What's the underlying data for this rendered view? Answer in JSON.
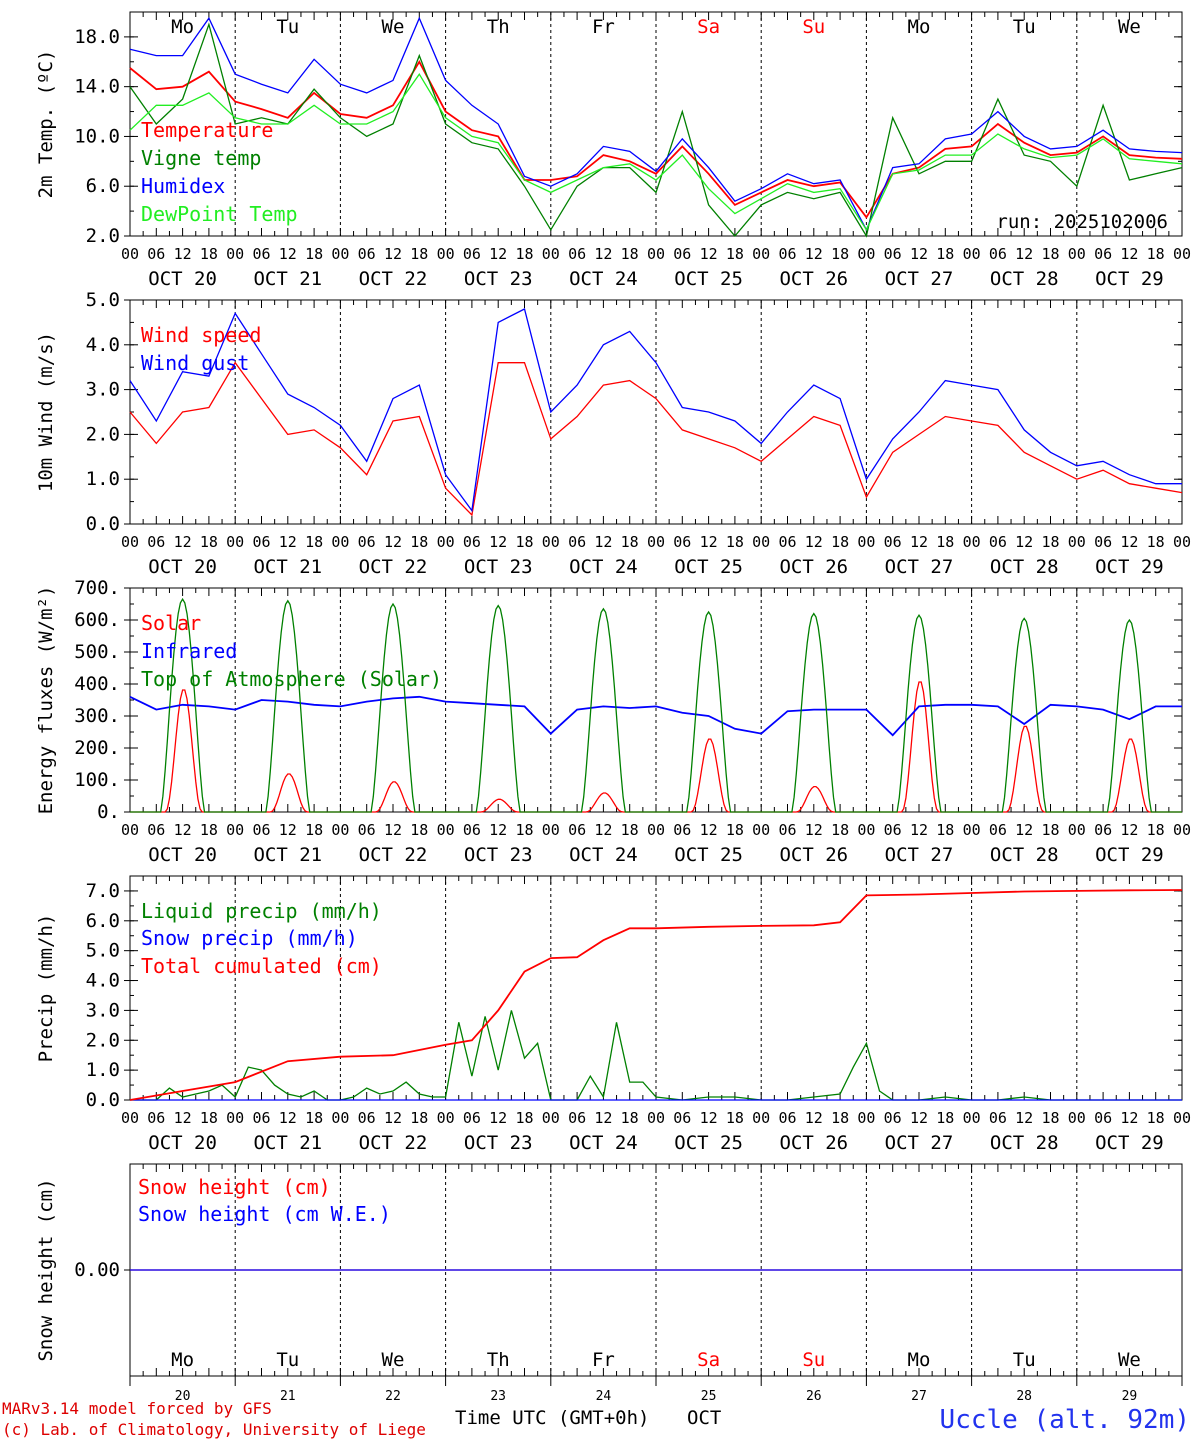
{
  "meta": {
    "station": "Uccle (alt. 92m)",
    "run_label": "run: 2025102006",
    "credit_line1": "MARv3.14 model forced by GFS",
    "credit_line2": "(c) Lab. of Climatology, University of Liege",
    "time_axis_label": "Time UTC (GMT+0h)",
    "month_label": "OCT"
  },
  "colors": {
    "red": "#ff0000",
    "dark_green": "#008000",
    "blue": "#0000ff",
    "light_green": "#22ee22",
    "weekend": "#ff0000",
    "axis": "#000000",
    "station": "#2233ee",
    "credit": "#dd0000"
  },
  "days": {
    "names": [
      "Mo",
      "Tu",
      "We",
      "Th",
      "Fr",
      "Sa",
      "Su",
      "Mo",
      "Tu",
      "We"
    ],
    "weekend": [
      false,
      false,
      false,
      false,
      false,
      true,
      true,
      false,
      false,
      false
    ],
    "dates": [
      "OCT 20",
      "OCT 21",
      "OCT 22",
      "OCT 23",
      "OCT 24",
      "OCT 25",
      "OCT 26",
      "OCT 27",
      "OCT 28",
      "OCT 29"
    ],
    "numbers": [
      "20",
      "21",
      "22",
      "23",
      "24",
      "25",
      "26",
      "27",
      "28",
      "29"
    ],
    "hour_ticks": [
      "00",
      "06",
      "12",
      "18"
    ]
  },
  "chart_data": [
    {
      "id": "temperature",
      "type": "line",
      "ylabel": "2m Temp. (ºC)",
      "ylim": [
        2,
        20
      ],
      "yticks": [
        2,
        6,
        10,
        14,
        18
      ],
      "ytick_labels": [
        "2.0",
        "6.0",
        "10.0",
        "14.0",
        "18.0"
      ],
      "x_hours": [
        0,
        6,
        12,
        18,
        24,
        30,
        36,
        42,
        48,
        54,
        60,
        66,
        72,
        78,
        84,
        90,
        96,
        102,
        108,
        114,
        120,
        126,
        132,
        138,
        144,
        150,
        156,
        162,
        168,
        174,
        180,
        186,
        192,
        198,
        204,
        210,
        216,
        222,
        228,
        234,
        240
      ],
      "series": [
        {
          "name": "Temperature",
          "color": "#ff0000",
          "values": [
            15.5,
            13.8,
            14.0,
            15.2,
            12.8,
            12.2,
            11.5,
            13.5,
            11.8,
            11.5,
            12.5,
            16.0,
            12.0,
            10.5,
            10.0,
            6.5,
            6.5,
            6.8,
            8.5,
            8.0,
            7.0,
            9.2,
            7.0,
            4.5,
            5.5,
            6.5,
            6.0,
            6.3,
            3.5,
            7.0,
            7.5,
            9.0,
            9.2,
            11.0,
            9.5,
            8.5,
            8.7,
            10.0,
            8.5,
            8.3,
            8.2
          ]
        },
        {
          "name": "Vigne temp",
          "color": "#008000",
          "values": [
            14.0,
            11.0,
            13.0,
            19.0,
            11.0,
            11.5,
            11.0,
            13.8,
            11.5,
            10.0,
            11.0,
            16.5,
            11.0,
            9.5,
            9.0,
            6.0,
            2.5,
            6.0,
            7.5,
            7.5,
            5.5,
            12.0,
            4.5,
            2.0,
            4.5,
            5.5,
            5.0,
            5.5,
            2.0,
            11.5,
            7.0,
            8.0,
            8.0,
            13.0,
            8.5,
            8.0,
            6.0,
            12.5,
            6.5,
            7.0,
            7.5
          ]
        },
        {
          "name": "Humidex",
          "color": "#0000ff",
          "values": [
            17.0,
            16.5,
            16.5,
            19.5,
            15.0,
            14.2,
            13.5,
            16.2,
            14.2,
            13.5,
            14.5,
            19.5,
            14.5,
            12.5,
            11.0,
            6.8,
            6.0,
            7.0,
            9.2,
            8.8,
            7.2,
            9.8,
            7.5,
            4.8,
            5.8,
            7.0,
            6.2,
            6.5,
            2.5,
            7.5,
            7.8,
            9.8,
            10.2,
            12.0,
            10.0,
            9.0,
            9.2,
            10.5,
            9.0,
            8.8,
            8.7
          ]
        },
        {
          "name": "DewPoint Temp",
          "color": "#22ee22",
          "values": [
            10.5,
            12.5,
            12.5,
            13.5,
            11.5,
            11.0,
            11.0,
            12.5,
            11.0,
            11.0,
            12.0,
            15.0,
            11.5,
            10.0,
            9.5,
            6.5,
            5.5,
            6.5,
            7.5,
            7.8,
            6.5,
            8.5,
            5.8,
            3.8,
            5.0,
            6.2,
            5.5,
            5.8,
            2.5,
            7.0,
            7.3,
            8.5,
            8.5,
            10.2,
            9.0,
            8.3,
            8.5,
            9.8,
            8.2,
            8.0,
            7.8
          ]
        }
      ],
      "legend": [
        "Temperature",
        "Vigne temp",
        "Humidex",
        "DewPoint Temp"
      ]
    },
    {
      "id": "wind",
      "type": "line",
      "ylabel": "10m Wind (m/s)",
      "ylim": [
        0,
        5
      ],
      "yticks": [
        0,
        1,
        2,
        3,
        4,
        5
      ],
      "ytick_labels": [
        "0.0",
        "1.0",
        "2.0",
        "3.0",
        "4.0",
        "5.0"
      ],
      "x_hours": [
        0,
        6,
        12,
        18,
        24,
        30,
        36,
        42,
        48,
        54,
        60,
        66,
        72,
        78,
        84,
        90,
        96,
        102,
        108,
        114,
        120,
        126,
        132,
        138,
        144,
        150,
        156,
        162,
        168,
        174,
        180,
        186,
        192,
        198,
        204,
        210,
        216,
        222,
        228,
        234,
        240
      ],
      "series": [
        {
          "name": "Wind speed",
          "color": "#ff0000",
          "values": [
            2.5,
            1.8,
            2.5,
            2.6,
            3.6,
            2.8,
            2.0,
            2.1,
            1.7,
            1.1,
            2.3,
            2.4,
            0.8,
            0.2,
            3.6,
            3.6,
            1.9,
            2.4,
            3.1,
            3.2,
            2.8,
            2.1,
            1.9,
            1.7,
            1.4,
            1.9,
            2.4,
            2.2,
            0.6,
            1.6,
            2.0,
            2.4,
            2.3,
            2.2,
            1.6,
            1.3,
            1.0,
            1.2,
            0.9,
            0.8,
            0.7
          ]
        },
        {
          "name": "Wind gust",
          "color": "#0000ff",
          "values": [
            3.2,
            2.3,
            3.4,
            3.3,
            4.7,
            3.8,
            2.9,
            2.6,
            2.2,
            1.4,
            2.8,
            3.1,
            1.1,
            0.3,
            4.5,
            4.8,
            2.5,
            3.1,
            4.0,
            4.3,
            3.6,
            2.6,
            2.5,
            2.3,
            1.8,
            2.5,
            3.1,
            2.8,
            1.0,
            1.9,
            2.5,
            3.2,
            3.1,
            3.0,
            2.1,
            1.6,
            1.3,
            1.4,
            1.1,
            0.9,
            0.9
          ]
        }
      ],
      "legend": [
        "Wind speed",
        "Wind gust"
      ]
    },
    {
      "id": "energy",
      "type": "line",
      "ylabel": "Energy fluxes (W/m²)",
      "ylim": [
        0,
        700
      ],
      "yticks": [
        0,
        100,
        200,
        300,
        400,
        500,
        600,
        700
      ],
      "ytick_labels": [
        "0.",
        "100.",
        "200.",
        "300.",
        "400.",
        "500.",
        "600.",
        "700."
      ],
      "series": [
        {
          "name": "Solar",
          "color": "#ff0000",
          "daily_peak": [
            385,
            120,
            95,
            40,
            60,
            230,
            80,
            410,
            270,
            230
          ]
        },
        {
          "name": "Infrared",
          "color": "#0000ff",
          "x_hours": [
            0,
            6,
            12,
            18,
            24,
            30,
            36,
            42,
            48,
            54,
            60,
            66,
            72,
            78,
            84,
            90,
            96,
            102,
            108,
            114,
            120,
            126,
            132,
            138,
            144,
            150,
            156,
            162,
            168,
            174,
            180,
            186,
            192,
            198,
            204,
            210,
            216,
            222,
            228,
            234,
            240
          ],
          "values": [
            360,
            320,
            335,
            330,
            320,
            350,
            345,
            335,
            330,
            345,
            355,
            360,
            345,
            340,
            335,
            330,
            245,
            320,
            330,
            325,
            330,
            310,
            300,
            260,
            245,
            315,
            320,
            320,
            320,
            240,
            330,
            335,
            335,
            330,
            275,
            335,
            330,
            320,
            290,
            330,
            330
          ]
        },
        {
          "name": "Top of Atmosphere (Solar)",
          "color": "#008000",
          "daily_peak": [
            665,
            660,
            650,
            645,
            635,
            625,
            620,
            615,
            605,
            600
          ]
        }
      ],
      "legend": [
        "Solar",
        "Infrared",
        "Top of Atmosphere (Solar)"
      ]
    },
    {
      "id": "precip",
      "type": "line",
      "ylabel": "Precip (mm/h)",
      "ylim": [
        0,
        7.5
      ],
      "yticks": [
        0,
        1,
        2,
        3,
        4,
        5,
        6,
        7
      ],
      "ytick_labels": [
        "0.0",
        "1.0",
        "2.0",
        "3.0",
        "4.0",
        "5.0",
        "6.0",
        "7.0"
      ],
      "series": [
        {
          "name": "Liquid precip (mm/h)",
          "color": "#008000",
          "x_hours": [
            0,
            6,
            9,
            12,
            15,
            18,
            21,
            24,
            27,
            30,
            33,
            36,
            39,
            42,
            45,
            48,
            51,
            54,
            57,
            60,
            63,
            66,
            69,
            72,
            75,
            78,
            81,
            84,
            87,
            90,
            93,
            96,
            99,
            102,
            105,
            108,
            111,
            114,
            117,
            120,
            126,
            132,
            138,
            144,
            150,
            156,
            162,
            165,
            168,
            171,
            174,
            180,
            186,
            192,
            198,
            204,
            210,
            216,
            222,
            228,
            234,
            240
          ],
          "values": [
            0,
            0,
            0.4,
            0.1,
            0.2,
            0.3,
            0.5,
            0.1,
            1.1,
            1.0,
            0.5,
            0.2,
            0.1,
            0.3,
            0,
            0,
            0.1,
            0.4,
            0.2,
            0.3,
            0.6,
            0.2,
            0.1,
            0.1,
            2.6,
            0.8,
            2.8,
            1.0,
            3.0,
            1.4,
            1.9,
            0,
            0,
            0,
            0.8,
            0.1,
            2.6,
            0.6,
            0.6,
            0.1,
            0,
            0.1,
            0.1,
            0,
            0,
            0.1,
            0.2,
            1.1,
            1.9,
            0.3,
            0,
            0,
            0.1,
            0,
            0,
            0.1,
            0,
            0,
            0,
            0,
            0,
            0
          ]
        },
        {
          "name": "Snow precip (mm/h)",
          "color": "#0000ff",
          "x_hours": [
            0,
            240
          ],
          "values": [
            0,
            0
          ]
        },
        {
          "name": "Total cumulated (cm)",
          "color": "#ff0000",
          "x_hours": [
            0,
            12,
            24,
            36,
            48,
            60,
            72,
            78,
            84,
            90,
            96,
            102,
            108,
            114,
            120,
            132,
            144,
            156,
            162,
            168,
            180,
            192,
            204,
            216,
            228,
            240
          ],
          "values": [
            0,
            0.3,
            0.6,
            1.3,
            1.45,
            1.5,
            1.85,
            2.0,
            3.0,
            4.3,
            4.75,
            4.78,
            5.35,
            5.75,
            5.75,
            5.8,
            5.83,
            5.85,
            5.95,
            6.85,
            6.88,
            6.93,
            6.98,
            7.0,
            7.02,
            7.03
          ]
        }
      ],
      "legend": [
        "Liquid precip (mm/h)",
        "Snow precip (mm/h)",
        "Total cumulated (cm)"
      ]
    },
    {
      "id": "snow",
      "type": "line",
      "ylabel": "Snow height (cm)",
      "yticks": [
        0
      ],
      "ytick_labels": [
        "0.00"
      ],
      "series": [
        {
          "name": "Snow height (cm)",
          "color": "#ff0000",
          "x_hours": [
            0,
            240
          ],
          "values": [
            0,
            0
          ]
        },
        {
          "name": "Snow height (cm W.E.)",
          "color": "#0000ff",
          "x_hours": [
            0,
            240
          ],
          "values": [
            0,
            0
          ]
        }
      ],
      "legend": [
        "Snow height (cm)",
        "Snow height (cm W.E.)"
      ]
    }
  ]
}
